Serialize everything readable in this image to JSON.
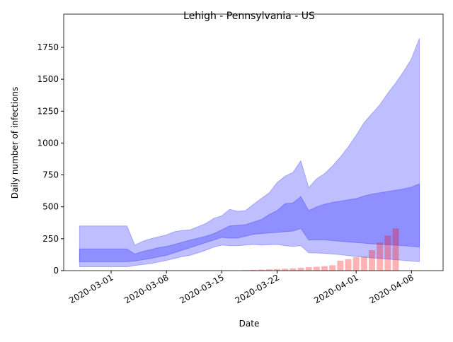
{
  "chart_data": {
    "type": "combo",
    "title": "Lehigh - Pennsylvania - US",
    "xlabel": "Date",
    "ylabel": "Daily number of infections",
    "xlim": [
      "2020-02-24",
      "2020-04-12"
    ],
    "xticks": [
      "2020-03-01",
      "2020-03-08",
      "2020-03-15",
      "2020-03-22",
      "2020-04-01",
      "2020-04-08"
    ],
    "ylim": [
      0,
      2010
    ],
    "yticks": [
      0,
      250,
      500,
      750,
      1000,
      1250,
      1500,
      1750
    ],
    "x": [
      "2020-02-26",
      "2020-02-27",
      "2020-02-28",
      "2020-02-29",
      "2020-03-01",
      "2020-03-02",
      "2020-03-03",
      "2020-03-04",
      "2020-03-05",
      "2020-03-06",
      "2020-03-07",
      "2020-03-08",
      "2020-03-09",
      "2020-03-10",
      "2020-03-11",
      "2020-03-12",
      "2020-03-13",
      "2020-03-14",
      "2020-03-15",
      "2020-03-16",
      "2020-03-17",
      "2020-03-18",
      "2020-03-19",
      "2020-03-20",
      "2020-03-21",
      "2020-03-22",
      "2020-03-23",
      "2020-03-24",
      "2020-03-25",
      "2020-03-26",
      "2020-03-27",
      "2020-03-28",
      "2020-03-29",
      "2020-03-30",
      "2020-03-31",
      "2020-04-01",
      "2020-04-02",
      "2020-04-03",
      "2020-04-04",
      "2020-04-05",
      "2020-04-06",
      "2020-04-07",
      "2020-04-08",
      "2020-04-09"
    ],
    "series": [
      {
        "type": "band",
        "color": "#0000ff",
        "upper": [
          350,
          350,
          350,
          350,
          350,
          350,
          350,
          200,
          230,
          250,
          265,
          280,
          305,
          315,
          320,
          345,
          370,
          410,
          430,
          480,
          465,
          470,
          520,
          565,
          610,
          690,
          740,
          770,
          860,
          650,
          720,
          760,
          820,
          890,
          970,
          1060,
          1160,
          1230,
          1300,
          1390,
          1470,
          1560,
          1660,
          1820
        ],
        "lower": [
          30,
          30,
          30,
          30,
          30,
          30,
          30,
          40,
          48,
          55,
          68,
          80,
          95,
          110,
          120,
          140,
          160,
          185,
          200,
          195,
          195,
          200,
          205,
          200,
          203,
          205,
          195,
          190,
          195,
          140,
          138,
          135,
          130,
          125,
          118,
          110,
          105,
          100,
          95,
          90,
          85,
          80,
          75,
          70
        ]
      },
      {
        "type": "band",
        "color": "#0000ff",
        "upper": [
          170,
          170,
          170,
          170,
          170,
          170,
          170,
          130,
          150,
          165,
          180,
          190,
          205,
          222,
          240,
          255,
          270,
          290,
          320,
          350,
          355,
          360,
          380,
          400,
          440,
          470,
          525,
          530,
          580,
          470,
          500,
          520,
          535,
          545,
          555,
          565,
          585,
          600,
          610,
          620,
          630,
          640,
          655,
          680
        ],
        "lower": [
          70,
          70,
          70,
          70,
          70,
          70,
          70,
          75,
          85,
          95,
          108,
          120,
          140,
          160,
          180,
          200,
          220,
          240,
          260,
          255,
          255,
          270,
          285,
          290,
          295,
          300,
          305,
          310,
          330,
          240,
          240,
          240,
          235,
          230,
          225,
          220,
          215,
          210,
          207,
          203,
          200,
          195,
          190,
          185
        ]
      },
      {
        "type": "bar",
        "color": "#ff0000",
        "x": [
          "2020-03-18",
          "2020-03-19",
          "2020-03-20",
          "2020-03-21",
          "2020-03-22",
          "2020-03-23",
          "2020-03-24",
          "2020-03-25",
          "2020-03-26",
          "2020-03-27",
          "2020-03-28",
          "2020-03-29",
          "2020-03-30",
          "2020-03-31",
          "2020-04-01",
          "2020-04-02",
          "2020-04-03",
          "2020-04-04",
          "2020-04-05",
          "2020-04-06"
        ],
        "values": [
          4,
          6,
          8,
          10,
          12,
          15,
          18,
          22,
          27,
          30,
          35,
          42,
          78,
          90,
          105,
          110,
          160,
          220,
          275,
          330
        ]
      }
    ]
  }
}
